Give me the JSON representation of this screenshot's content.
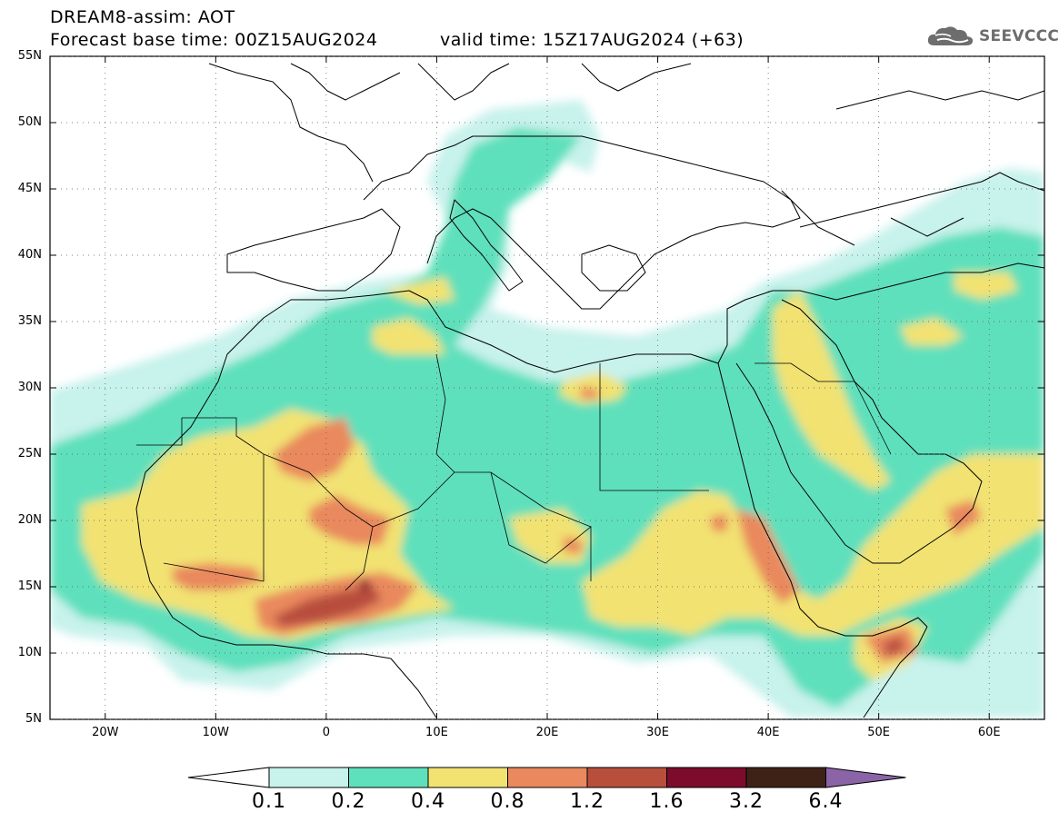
{
  "header": {
    "title_line1": "DREAM8-assim: AOT",
    "title_line2": "Forecast base time: 00Z15AUG2024",
    "valid_time": "valid time: 15Z17AUG2024 (+63)"
  },
  "logo": {
    "text": "SEEVCCC",
    "icon": "cloud-icon",
    "color": "#6d6d6d"
  },
  "map": {
    "region": "North Africa, Europe and Middle East",
    "lat_labels": [
      "55N",
      "50N",
      "45N",
      "40N",
      "35N",
      "30N",
      "25N",
      "20N",
      "15N",
      "10N",
      "5N"
    ],
    "lon_labels": [
      "20W",
      "10W",
      "0",
      "10E",
      "20E",
      "30E",
      "40E",
      "50E",
      "60E"
    ],
    "lon_range": [
      -25,
      65
    ],
    "lat_range": [
      5,
      55
    ]
  },
  "colorbar": {
    "labels": [
      "0.1",
      "0.2",
      "0.4",
      "0.8",
      "1.2",
      "1.6",
      "3.2",
      "6.4"
    ],
    "colors": [
      "#c8f2ec",
      "#5fe0bc",
      "#f2e272",
      "#e9895d",
      "#b84e3c",
      "#7d0c2c",
      "#3e2217",
      "#8a64a6"
    ],
    "under_color": "#ffffff"
  }
}
